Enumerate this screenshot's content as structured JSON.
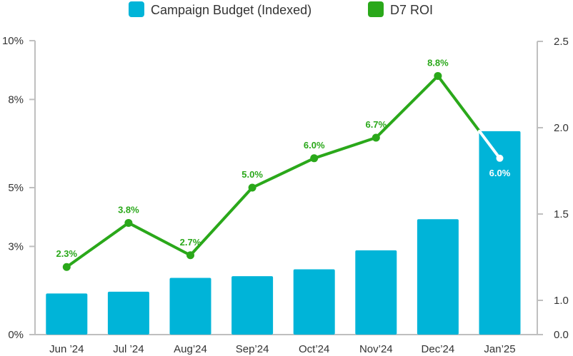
{
  "chart_data": {
    "type": "bar",
    "categories": [
      "Jun ’24",
      "Jul ’24",
      "Aug’24",
      "Sep’24",
      "Oct’24",
      "Nov’24",
      "Dec’24",
      "Jan’25"
    ],
    "series": [
      {
        "name": "Campaign Budget (Indexed)",
        "type": "bar",
        "axis": "right",
        "values": [
          1.04,
          1.05,
          1.13,
          1.14,
          1.18,
          1.29,
          1.47,
          1.98
        ]
      },
      {
        "name": "D7 ROI",
        "type": "line",
        "axis": "left",
        "values": [
          2.3,
          3.8,
          2.7,
          5.0,
          6.0,
          6.7,
          8.8,
          6.0
        ],
        "labels": [
          "2.3%",
          "3.8%",
          "2.7%",
          "5.0%",
          "6.0%",
          "6.7%",
          "8.8%",
          "6.0%"
        ]
      }
    ],
    "y_left": {
      "ticks": [
        0,
        3,
        5,
        8,
        10
      ],
      "tick_labels": [
        "0%",
        "3%",
        "5%",
        "8%",
        "10%"
      ],
      "ylim": [
        0,
        10
      ]
    },
    "y_right": {
      "ticks": [
        0.0,
        1.0,
        1.5,
        2.0,
        2.5
      ],
      "tick_labels": [
        "0.0",
        "1.0",
        "1.5",
        "2.0",
        "2.5"
      ]
    },
    "legend_placement": "top-center",
    "grid": false,
    "colors": {
      "bar": "#00b4d8",
      "line": "#2aa81a",
      "axis": "#bfbfbf",
      "text": "#333333"
    }
  }
}
